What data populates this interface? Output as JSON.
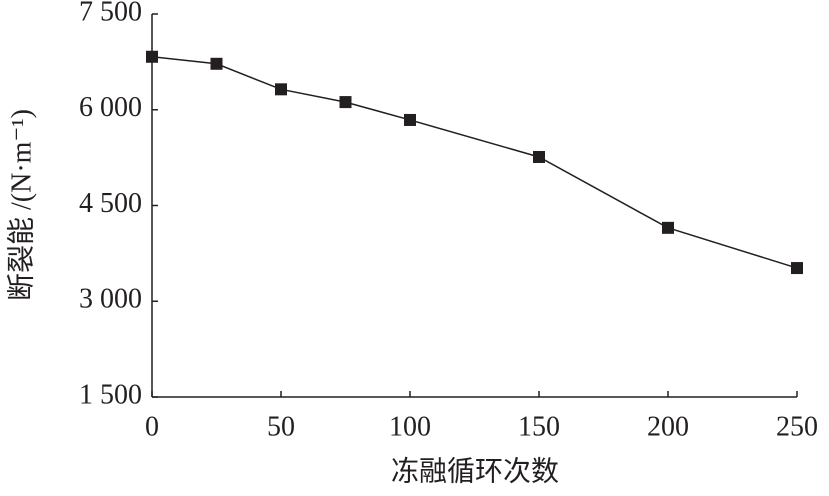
{
  "chart_data": {
    "type": "line",
    "x_label": "冻融循环次数",
    "y_label": "断裂能 /(N·m⁻¹)",
    "x": [
      0,
      25,
      50,
      75,
      100,
      150,
      200,
      250
    ],
    "series": [
      {
        "color": "#231f20",
        "values": [
          6830,
          6720,
          6320,
          6120,
          5840,
          5260,
          4150,
          3520
        ]
      }
    ],
    "xlim": [
      0,
      250
    ],
    "xticks": [
      0,
      50,
      100,
      150,
      200,
      250
    ],
    "ylim": [
      1500,
      7500
    ],
    "yticks": [
      {
        "value": 1500,
        "label": "1 500"
      },
      {
        "value": 3000,
        "label": "3 000"
      },
      {
        "value": 4500,
        "label": "4 500"
      },
      {
        "value": 6000,
        "label": "6 000"
      },
      {
        "value": 7500,
        "label": "7 500"
      }
    ],
    "grid": false
  }
}
